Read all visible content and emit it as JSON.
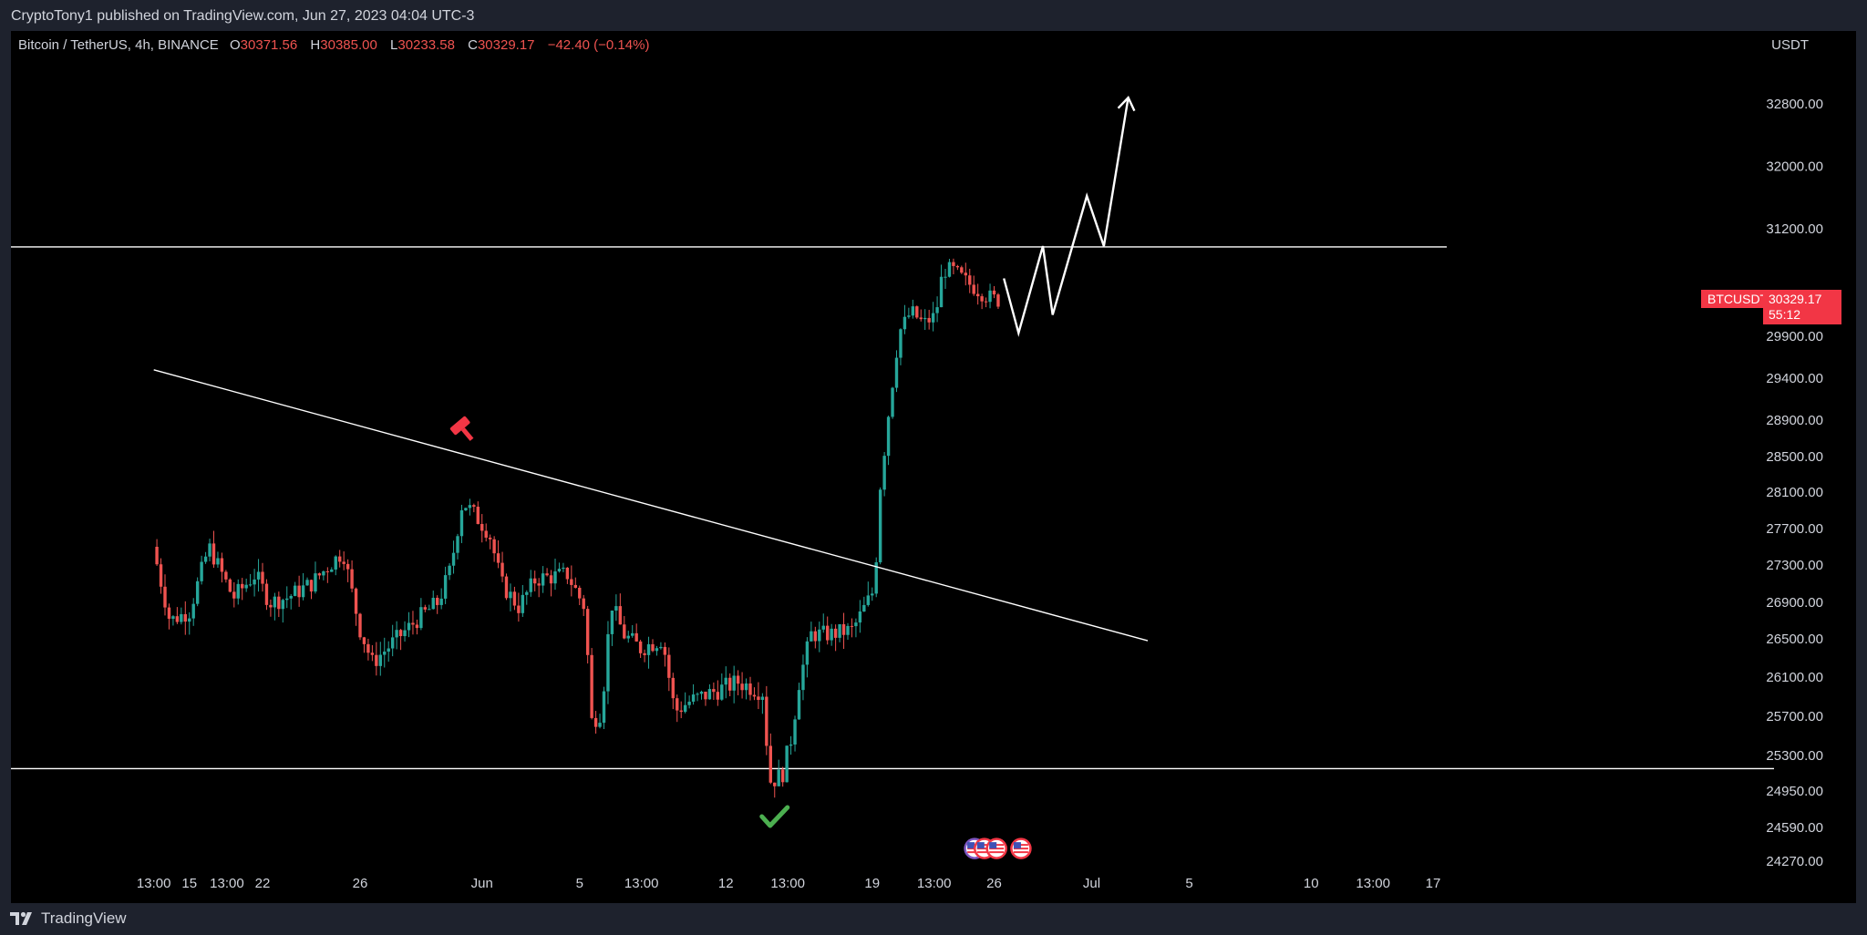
{
  "header": {
    "publisher_text": "CryptoTony1 published on TradingView.com, Jun 27, 2023 04:04 UTC-3"
  },
  "footer": {
    "brand": "TradingView"
  },
  "legend": {
    "symbol": "Bitcoin / TetherUS, 4h, BINANCE",
    "open_label": "O",
    "open": "30371.56",
    "high_label": "H",
    "high": "30385.00",
    "low_label": "L",
    "low": "30233.58",
    "close_label": "C",
    "close": "30329.17",
    "change": "−42.40 (−0.14%)"
  },
  "price_axis": {
    "currency": "USDT",
    "tick_labels": [
      "32800.00",
      "32000.00",
      "31200.00",
      "29900.00",
      "29400.00",
      "28900.00",
      "28500.00",
      "28100.00",
      "27700.00",
      "27300.00",
      "26900.00",
      "26500.00",
      "26100.00",
      "25700.00",
      "25300.00",
      "24950.00",
      "24590.00",
      "24270.00"
    ],
    "tick_values": [
      32800,
      32000,
      31200,
      29900,
      29400,
      28900,
      28500,
      28100,
      27700,
      27300,
      26900,
      26500,
      26100,
      25700,
      25300,
      24950,
      24590,
      24270
    ]
  },
  "time_axis": {
    "tick_labels": [
      "13:00",
      "15",
      "13:00",
      "22",
      "26",
      "Jun",
      "5",
      "13:00",
      "12",
      "13:00",
      "19",
      "13:00",
      "26",
      "Jul",
      "5",
      "10",
      "13:00",
      "17"
    ],
    "tick_day_offsets": [
      -4.46,
      -3,
      -1.46,
      0,
      4,
      9,
      13,
      15.54,
      19,
      21.54,
      25,
      27.54,
      30,
      34,
      38,
      43,
      45.54,
      48
    ]
  },
  "current_price": {
    "symbol_tag": "BTCUSDT",
    "price": "30329.17",
    "countdown": "55:12"
  },
  "colors": {
    "up": "#26a69a",
    "down": "#ef5350",
    "background": "#000000",
    "drawing": "#ffffff",
    "tag": "#f23645"
  },
  "icons": {
    "bear_marker": "gavel-icon",
    "bull_marker": "checkmark-icon",
    "events": "us-flag-event-icons"
  },
  "chart_data": {
    "type": "candlestick",
    "symbol": "BTCUSDT",
    "interval": "4h",
    "x_unit": "days from May 22",
    "ylim": [
      24100,
      33100
    ],
    "anchors": [
      {
        "x": -4.5,
        "y": 27500
      },
      {
        "x": -3.8,
        "y": 26700
      },
      {
        "x": -3,
        "y": 26800
      },
      {
        "x": -2.2,
        "y": 27500
      },
      {
        "x": -1.2,
        "y": 26950
      },
      {
        "x": -0.3,
        "y": 27200
      },
      {
        "x": 0.3,
        "y": 26900
      },
      {
        "x": 1,
        "y": 26950
      },
      {
        "x": 2,
        "y": 27100
      },
      {
        "x": 3.3,
        "y": 27450
      },
      {
        "x": 4,
        "y": 26600
      },
      {
        "x": 4.5,
        "y": 26250
      },
      {
        "x": 5.5,
        "y": 26500
      },
      {
        "x": 6.5,
        "y": 26750
      },
      {
        "x": 7.2,
        "y": 26900
      },
      {
        "x": 7.7,
        "y": 27250
      },
      {
        "x": 8.2,
        "y": 28000
      },
      {
        "x": 8.7,
        "y": 27850
      },
      {
        "x": 9.3,
        "y": 27650
      },
      {
        "x": 9.8,
        "y": 27100
      },
      {
        "x": 10.5,
        "y": 26850
      },
      {
        "x": 11.2,
        "y": 27150
      },
      {
        "x": 12.5,
        "y": 27200
      },
      {
        "x": 13.2,
        "y": 26850
      },
      {
        "x": 13.5,
        "y": 25650
      },
      {
        "x": 13.9,
        "y": 25750
      },
      {
        "x": 14.3,
        "y": 26900
      },
      {
        "x": 14.8,
        "y": 26550
      },
      {
        "x": 15.5,
        "y": 26400
      },
      {
        "x": 16.4,
        "y": 26500
      },
      {
        "x": 16.9,
        "y": 25750
      },
      {
        "x": 17.5,
        "y": 25850
      },
      {
        "x": 18.5,
        "y": 25950
      },
      {
        "x": 19.5,
        "y": 26050
      },
      {
        "x": 20.5,
        "y": 25950
      },
      {
        "x": 20.8,
        "y": 25050
      },
      {
        "x": 21.3,
        "y": 25100
      },
      {
        "x": 21.7,
        "y": 25500
      },
      {
        "x": 22,
        "y": 26050
      },
      {
        "x": 22.5,
        "y": 26550
      },
      {
        "x": 23.3,
        "y": 26550
      },
      {
        "x": 24.2,
        "y": 26600
      },
      {
        "x": 24.6,
        "y": 26800
      },
      {
        "x": 25.1,
        "y": 27050
      },
      {
        "x": 25.3,
        "y": 28100
      },
      {
        "x": 25.7,
        "y": 29050
      },
      {
        "x": 26.1,
        "y": 29950
      },
      {
        "x": 26.6,
        "y": 30200
      },
      {
        "x": 27.1,
        "y": 30050
      },
      {
        "x": 27.6,
        "y": 30150
      },
      {
        "x": 27.9,
        "y": 30700
      },
      {
        "x": 28.3,
        "y": 30700
      },
      {
        "x": 28.9,
        "y": 30550
      },
      {
        "x": 29.6,
        "y": 30400
      },
      {
        "x": 30.2,
        "y": 30329
      }
    ],
    "horizontal_levels": [
      30980,
      25170
    ],
    "trendline": [
      {
        "x": -4.46,
        "y": 29500
      },
      {
        "x": 36.3,
        "y": 26480
      }
    ],
    "projection_path": [
      {
        "x": 30.4,
        "y": 30600
      },
      {
        "x": 31.0,
        "y": 29940
      },
      {
        "x": 32.0,
        "y": 30990
      },
      {
        "x": 32.4,
        "y": 30160
      },
      {
        "x": 33.8,
        "y": 31620
      },
      {
        "x": 34.5,
        "y": 30990
      },
      {
        "x": 35.5,
        "y": 32880
      }
    ],
    "markers": [
      {
        "type": "bear",
        "x": 8.1,
        "y": 28840
      },
      {
        "type": "bull",
        "x": 21.0,
        "y": 24680
      }
    ],
    "events": [
      {
        "x": 29.2,
        "y": 24390
      },
      {
        "x": 29.6,
        "y": 24390
      },
      {
        "x": 30.1,
        "y": 24390
      },
      {
        "x": 31.1,
        "y": 24390
      }
    ]
  }
}
